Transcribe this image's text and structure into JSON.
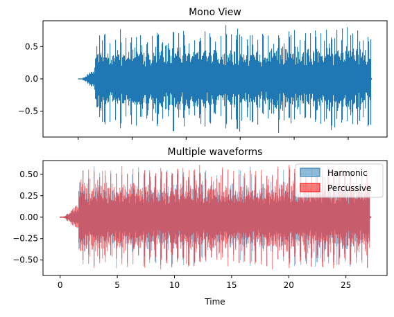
{
  "chart_data": [
    {
      "type": "area",
      "title": "Mono View",
      "xlabel": "",
      "ylabel": "",
      "xlim": [
        -3.25,
        28.6
      ],
      "ylim": [
        -0.9,
        0.9
      ],
      "xticks": [
        0,
        5,
        10,
        15,
        20,
        25
      ],
      "show_xtick_labels": false,
      "yticks": [
        0.5,
        0.0,
        -0.5
      ],
      "ytick_labels": [
        "0.5",
        "0.0",
        "−0.5"
      ],
      "grid": false,
      "series": [
        {
          "color": "#1f77b4",
          "x_range": [
            0,
            27.2
          ],
          "onset": 0.4,
          "peak_amplitude": 0.85,
          "typical_amplitude": 0.55
        }
      ]
    },
    {
      "type": "area",
      "title": "Multiple waveforms",
      "xlabel": "Time",
      "ylabel": "",
      "xlim": [
        -1.5,
        28.6
      ],
      "ylim": [
        -0.68,
        0.66
      ],
      "xticks": [
        0,
        5,
        10,
        15,
        20,
        25
      ],
      "xtick_labels": [
        "0",
        "5",
        "10",
        "15",
        "20",
        "25"
      ],
      "yticks": [
        0.5,
        0.25,
        0.0,
        -0.25,
        -0.5
      ],
      "ytick_labels": [
        "0.50",
        "0.25",
        "0.00",
        "−0.25",
        "−0.50"
      ],
      "grid": false,
      "legend": {
        "placement": "top-right"
      },
      "series": [
        {
          "name": "Harmonic",
          "color": "#1f77b4",
          "opacity": 0.5,
          "x_range": [
            0,
            27.2
          ],
          "onset": 0.4,
          "peak_amplitude": 0.6,
          "typical_amplitude": 0.42
        },
        {
          "name": "Percussive",
          "color": "#ff0000",
          "opacity": 0.5,
          "x_range": [
            0,
            27.2
          ],
          "onset": 0.4,
          "peak_amplitude": 0.62,
          "typical_amplitude": 0.45
        }
      ]
    }
  ]
}
